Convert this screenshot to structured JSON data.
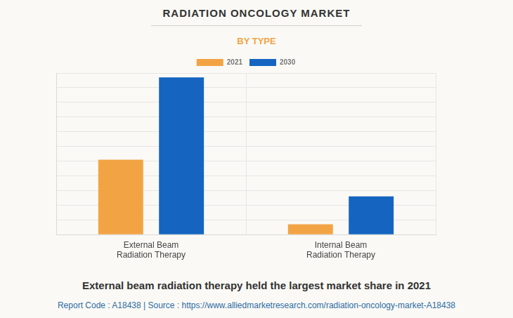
{
  "chart_data": {
    "type": "bar",
    "title": "RADIATION ONCOLOGY MARKET",
    "subtitle": "BY TYPE",
    "categories": [
      [
        "External Beam",
        "Radiation Therapy"
      ],
      [
        "Internal Beam",
        "Radiation Therapy"
      ]
    ],
    "series": [
      {
        "name": "2021",
        "color": "#f2a444",
        "values": [
          5.1,
          0.7
        ]
      },
      {
        "name": "2030",
        "color": "#1565c0",
        "values": [
          10.7,
          2.6
        ]
      }
    ],
    "ylim": [
      0,
      11
    ],
    "yticks": [
      0,
      1,
      2,
      3,
      4,
      5,
      6,
      7,
      8,
      9,
      10,
      11
    ],
    "grid": true,
    "legend": "top",
    "tick_labels": "x",
    "annotations": [
      "External beam radiation therapy held the largest market share in 2021",
      "Report Code : A18438  |  Source : https://www.alliedmarketresearch.com/radiation-oncology-market-A18438"
    ]
  }
}
